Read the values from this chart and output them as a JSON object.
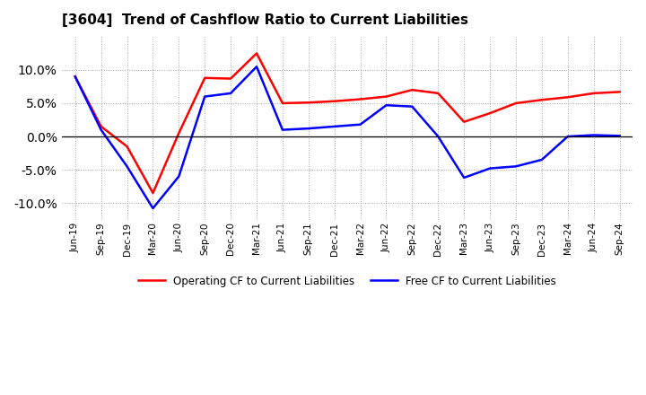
{
  "title": "[3604]  Trend of Cashflow Ratio to Current Liabilities",
  "x_labels": [
    "Jun-19",
    "Sep-19",
    "Dec-19",
    "Mar-20",
    "Jun-20",
    "Sep-20",
    "Dec-20",
    "Mar-21",
    "Jun-21",
    "Sep-21",
    "Dec-21",
    "Mar-22",
    "Jun-22",
    "Sep-22",
    "Dec-22",
    "Mar-23",
    "Jun-23",
    "Sep-23",
    "Dec-23",
    "Mar-24",
    "Jun-24",
    "Sep-24"
  ],
  "operating_cf": [
    9.0,
    1.5,
    -1.5,
    -8.5,
    0.5,
    8.8,
    8.7,
    12.5,
    5.0,
    5.1,
    5.3,
    5.6,
    6.0,
    7.0,
    6.5,
    2.2,
    3.5,
    5.0,
    5.5,
    5.9,
    6.5,
    6.7
  ],
  "free_cf": [
    9.0,
    1.0,
    -4.5,
    -10.8,
    -6.0,
    6.0,
    6.5,
    10.5,
    1.0,
    1.2,
    1.5,
    1.8,
    4.7,
    4.5,
    0.0,
    -6.2,
    -4.8,
    -4.5,
    -3.5,
    0.0,
    0.2,
    0.1
  ],
  "ylim": [
    -12.5,
    15.0
  ],
  "yticks": [
    -10.0,
    -5.0,
    0.0,
    5.0,
    10.0
  ],
  "operating_color": "#ff0000",
  "free_color": "#0000ff",
  "background_color": "#ffffff",
  "grid_color": "#999999"
}
